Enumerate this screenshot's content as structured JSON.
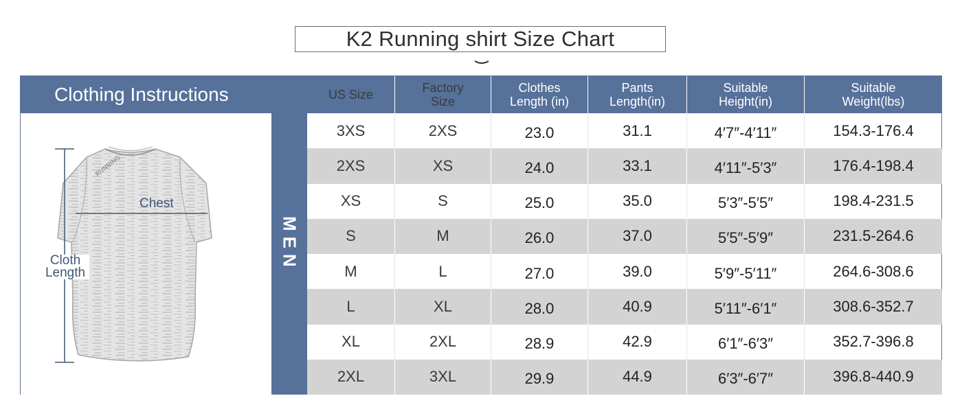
{
  "title": "K2 Running shirt Size Chart",
  "left": {
    "heading": "Clothing Instructions",
    "chest_label": "Chest",
    "cloth_length_label_1": "Cloth",
    "cloth_length_label_2": "Length",
    "shirt_print": "RUNNING"
  },
  "band_label": "MEN",
  "colors": {
    "header_bg": "#56719a",
    "stripe": "#d3d3d3",
    "accent_text": "#3e5679"
  },
  "table": {
    "headers": [
      "US Size",
      "Factory\nSize",
      "Clothes\nLength (in)",
      "Pants\nLength(in)",
      "Suitable\nHeight(in)",
      "Suitable\nWeight(lbs)"
    ],
    "rows": [
      [
        "3XS",
        "2XS",
        "23.0",
        "31.1",
        "4′7″-4′11″",
        "154.3-176.4"
      ],
      [
        "2XS",
        "XS",
        "24.0",
        "33.1",
        "4′11″-5′3″",
        "176.4-198.4"
      ],
      [
        "XS",
        "S",
        "25.0",
        "35.0",
        "5′3″-5′5″",
        "198.4-231.5"
      ],
      [
        "S",
        "M",
        "26.0",
        "37.0",
        "5′5″-5′9″",
        "231.5-264.6"
      ],
      [
        "M",
        "L",
        "27.0",
        "39.0",
        "5′9″-5′11″",
        "264.6-308.6"
      ],
      [
        "L",
        "XL",
        "28.0",
        "40.9",
        "5′11″-6′1″",
        "308.6-352.7"
      ],
      [
        "XL",
        "2XL",
        "28.9",
        "42.9",
        "6′1″-6′3″",
        "352.7-396.8"
      ],
      [
        "2XL",
        "3XL",
        "29.9",
        "44.9",
        "6′3″-6′7″",
        "396.8-440.9"
      ]
    ]
  }
}
